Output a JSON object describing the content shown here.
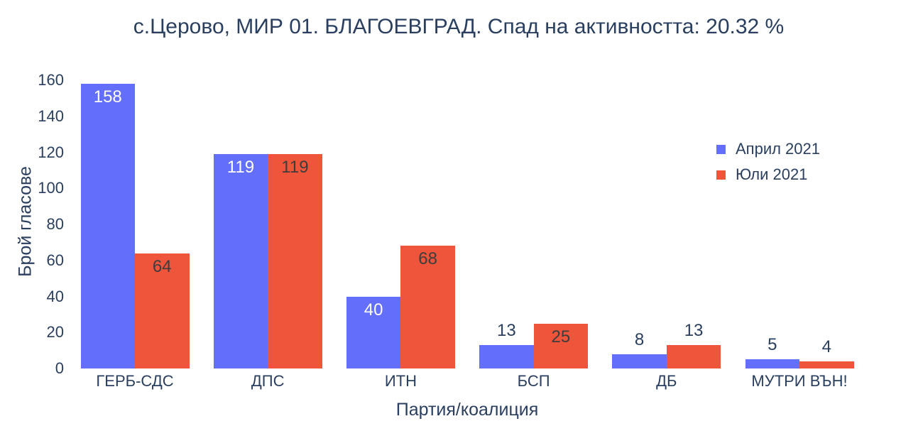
{
  "chart_data": {
    "type": "bar",
    "title": "с.Церово, МИР 01. БЛАГОЕВГРАД. Спад на активността: 20.32 %",
    "xlabel": "Партия/коалиция",
    "ylabel": "Брой гласове",
    "categories": [
      "ГЕРБ-СДС",
      "ДПС",
      "ИТН",
      "БСП",
      "ДБ",
      "МУТРИ ВЪН!"
    ],
    "series": [
      {
        "name": "Април 2021",
        "color": "#636efa",
        "inside_label_color": "#ffffff",
        "values": [
          158,
          119,
          40,
          13,
          8,
          5
        ]
      },
      {
        "name": "Юли 2021",
        "color": "#ef553b",
        "inside_label_color": "#3d3d3d",
        "values": [
          64,
          119,
          68,
          25,
          13,
          4
        ]
      }
    ],
    "yticks": [
      0,
      20,
      40,
      60,
      80,
      100,
      120,
      140,
      160
    ],
    "ylim": [
      0,
      160
    ],
    "grid": false,
    "legend_position": "right"
  },
  "colors": {
    "text": "#2a3f5f",
    "background": "#ffffff"
  }
}
